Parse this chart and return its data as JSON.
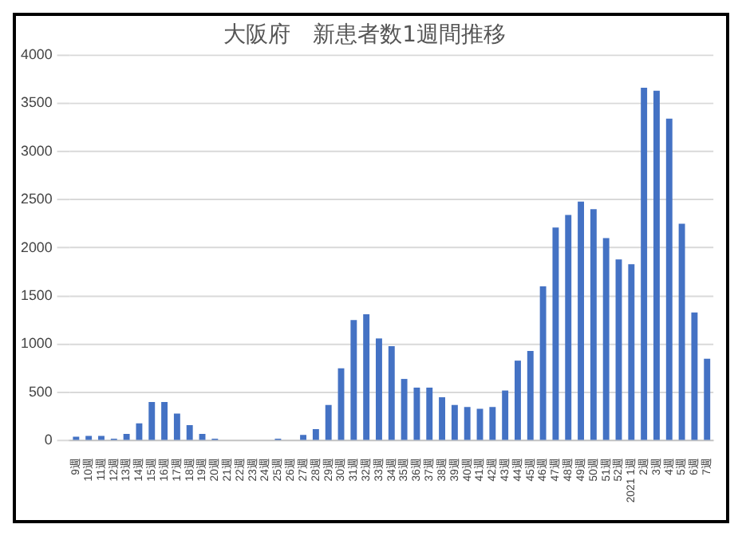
{
  "chart_data": {
    "type": "bar",
    "title": "大阪府　新患者数1週間推移",
    "categories": [
      "9週",
      "10週",
      "11週",
      "12週",
      "13週",
      "14週",
      "15週",
      "16週",
      "17週",
      "18週",
      "19週",
      "20週",
      "21週",
      "22週",
      "23週",
      "24週",
      "25週",
      "26週",
      "27週",
      "28週",
      "29週",
      "30週",
      "31週",
      "32週",
      "33週",
      "34週",
      "35週",
      "36週",
      "37週",
      "38週",
      "39週",
      "40週",
      "41週",
      "42週",
      "43週",
      "44週",
      "45週",
      "46週",
      "47週",
      "48週",
      "49週",
      "50週",
      "51週",
      "52週",
      "2021 1週",
      "2週",
      "3週",
      "4週",
      "5週",
      "6週",
      "7週"
    ],
    "values": [
      40,
      50,
      50,
      20,
      70,
      180,
      400,
      400,
      280,
      160,
      70,
      20,
      null,
      0,
      0,
      0,
      20,
      null,
      60,
      120,
      370,
      750,
      1250,
      1310,
      1060,
      980,
      640,
      550,
      550,
      450,
      370,
      350,
      330,
      350,
      520,
      830,
      930,
      1600,
      2210,
      2340,
      2480,
      2400,
      2100,
      1880,
      1830,
      3660,
      3630,
      3340,
      2250,
      1330,
      850
    ],
    "color": "#4472c4",
    "ylim": [
      0,
      4000
    ],
    "yticks": [
      0,
      500,
      1000,
      1500,
      2000,
      2500,
      3000,
      3500,
      4000
    ],
    "grid": "y"
  }
}
